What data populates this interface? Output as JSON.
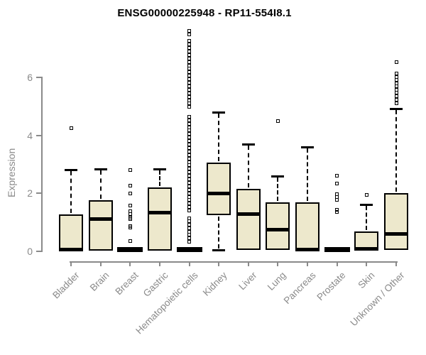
{
  "chart_data": {
    "type": "boxplot",
    "title": "ENSG00000225948 - RP11-554I8.1",
    "ylabel": "Expression",
    "xlabel": "",
    "yticks": [
      0,
      2,
      4,
      6
    ],
    "ylim": [
      0,
      7.7
    ],
    "grid": false,
    "legend": "none",
    "colors": {
      "box_fill": "#EDE8CC",
      "box_border": "#000000",
      "axis": "#8a8a8a",
      "title": "#000000"
    },
    "categories": [
      "Bladder",
      "Brain",
      "Breast",
      "Gastric",
      "Hematopoietic cells",
      "Kidney",
      "Liver",
      "Lung",
      "Pancreas",
      "Prostate",
      "Skin",
      "Unknown / Other"
    ],
    "series": [
      {
        "category": "Bladder",
        "whisker_low": 0,
        "q1": 0,
        "median": 0.03,
        "q3": 1.25,
        "whisker_high": 2.79,
        "outliers": [
          4.23
        ]
      },
      {
        "category": "Brain",
        "whisker_low": 0,
        "q1": 0,
        "median": 1.08,
        "q3": 1.74,
        "whisker_high": 2.81,
        "outliers": []
      },
      {
        "category": "Breast",
        "whisker_low": 0,
        "q1": 0,
        "median": 0,
        "q3": 0,
        "whisker_high": 0,
        "outliers": [
          2.79,
          2.23,
          1.98,
          1.56,
          1.35,
          1.25,
          1.15,
          1.08,
          0.85,
          0.8,
          0.32
        ]
      },
      {
        "category": "Gastric",
        "whisker_low": 0,
        "q1": 0,
        "median": 1.32,
        "q3": 2.18,
        "whisker_high": 2.81,
        "outliers": []
      },
      {
        "category": "Hematopoietic cells",
        "whisker_low": 0,
        "q1": 0,
        "median": 0,
        "q3": 0,
        "whisker_high": 0,
        "outliers": [
          0.3,
          0.42,
          0.54,
          0.66,
          0.78,
          0.9,
          1.02,
          1.12,
          1.38,
          1.5,
          1.62,
          1.74,
          1.86,
          1.98,
          2.1,
          2.22,
          2.34,
          2.46,
          2.58,
          2.7,
          2.82,
          2.94,
          3.06,
          3.18,
          3.3,
          3.42,
          3.54,
          3.66,
          3.78,
          3.9,
          4.02,
          4.14,
          4.26,
          4.38,
          4.5,
          4.62,
          4.95,
          5.07,
          5.19,
          5.31,
          5.43,
          5.55,
          5.67,
          5.79,
          5.91,
          6.03,
          6.15,
          6.27,
          6.39,
          6.51,
          6.63,
          6.75,
          6.87,
          6.99,
          7.11,
          7.23,
          7.46,
          7.58
        ]
      },
      {
        "category": "Kidney",
        "whisker_low": 0.02,
        "q1": 1.22,
        "median": 1.97,
        "q3": 3.03,
        "whisker_high": 4.77,
        "outliers": []
      },
      {
        "category": "Liver",
        "whisker_low": 0,
        "q1": 0.02,
        "median": 1.27,
        "q3": 2.13,
        "whisker_high": 3.68,
        "outliers": []
      },
      {
        "category": "Lung",
        "whisker_low": 0,
        "q1": 0.02,
        "median": 0.73,
        "q3": 1.66,
        "whisker_high": 2.57,
        "outliers": [
          4.47
        ]
      },
      {
        "category": "Pancreas",
        "whisker_low": 0,
        "q1": 0,
        "median": 0.03,
        "q3": 1.66,
        "whisker_high": 3.57,
        "outliers": []
      },
      {
        "category": "Prostate",
        "whisker_low": 0,
        "q1": 0,
        "median": 0,
        "q3": 0,
        "whisker_high": 0,
        "outliers": [
          2.59,
          2.32,
          1.95,
          1.85,
          1.75,
          1.4,
          1.33
        ]
      },
      {
        "category": "Skin",
        "whisker_low": 0,
        "q1": 0,
        "median": 0.05,
        "q3": 0.67,
        "whisker_high": 1.6,
        "outliers": [
          1.93
        ]
      },
      {
        "category": "Unknown / Other",
        "whisker_low": 0,
        "q1": 0.02,
        "median": 0.57,
        "q3": 1.98,
        "whisker_high": 4.89,
        "outliers": [
          6.5,
          6.1,
          6.0,
          5.9,
          5.78,
          5.66,
          5.55,
          5.44,
          5.32,
          5.2,
          5.08
        ]
      }
    ]
  }
}
